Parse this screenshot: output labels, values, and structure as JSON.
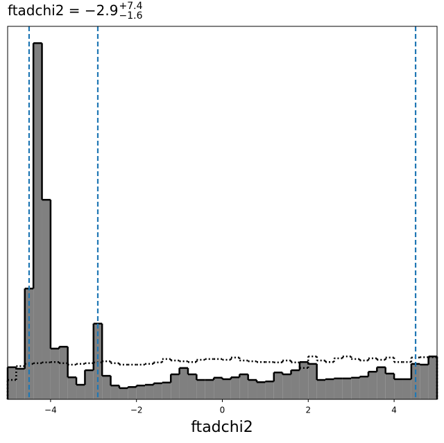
{
  "chart_data": {
    "type": "histogram",
    "title": {
      "text": "ftadchi2 = −2.9",
      "upper": "+7.4",
      "lower": "−1.6"
    },
    "x_label": "ftadchi2",
    "bins": [
      -5,
      -4.8,
      -4.6,
      -4.4,
      -4.2,
      -4,
      -3.8,
      -3.6,
      -3.4,
      -3.2,
      -3,
      -2.8,
      -2.6,
      -2.4,
      -2.2,
      -2,
      -1.8,
      -1.6,
      -1.4,
      -1.2,
      -1,
      -0.8,
      -0.6,
      -0.4,
      -0.2,
      0,
      0.2,
      0.4,
      0.6,
      0.8,
      1,
      1.2,
      1.4,
      1.6,
      1.8,
      2,
      2.2,
      2.4,
      2.6,
      2.8,
      3,
      3.2,
      3.4,
      3.6,
      3.8,
      4,
      4.2,
      4.4,
      4.6,
      4.8,
      5
    ],
    "series": [
      {
        "color": "#808080",
        "style": "filled",
        "values": [
          8.6,
          8.2,
          29.7,
          95.5,
          53.5,
          13.6,
          14.1,
          5.9,
          3.9,
          7.8,
          20.3,
          6.3,
          3.7,
          3.0,
          3.3,
          3.7,
          3.9,
          4.3,
          4.5,
          6.7,
          8.4,
          6.7,
          5.2,
          5.2,
          5.8,
          5.4,
          5.9,
          6.7,
          5.2,
          4.6,
          4.8,
          7.2,
          6.7,
          7.8,
          10.0,
          9.5,
          5.2,
          5.4,
          5.6,
          5.6,
          5.8,
          6.1,
          7.4,
          8.6,
          6.9,
          5.4,
          5.4,
          9.5,
          9.3,
          11.5
        ]
      },
      {
        "color": "#000000",
        "style": "dotted",
        "values": [
          5.2,
          8.9,
          9.5,
          9.7,
          9.9,
          10.0,
          9.7,
          9.3,
          9.5,
          9.7,
          9.9,
          10.2,
          9.7,
          9.3,
          9.3,
          9.3,
          9.5,
          9.9,
          10.8,
          10.4,
          10.2,
          10.0,
          10.6,
          10.8,
          10.8,
          10.6,
          11.2,
          10.4,
          10.2,
          10.0,
          10.0,
          9.9,
          10.4,
          9.9,
          8.4,
          11.5,
          10.4,
          10.0,
          11.0,
          11.5,
          10.8,
          10.4,
          11.0,
          10.6,
          11.2,
          10.0,
          10.0,
          11.2,
          11.3,
          11.3
        ]
      }
    ],
    "quantiles": [
      -4.5,
      -2.9,
      4.5
    ],
    "quantile_color": "#1f77b4",
    "xlim": [
      -5,
      5
    ],
    "ylim": [
      0,
      100
    ],
    "xticks": [
      {
        "value": -4,
        "label": "−4"
      },
      {
        "value": -2,
        "label": "−2"
      },
      0,
      2,
      4
    ]
  }
}
